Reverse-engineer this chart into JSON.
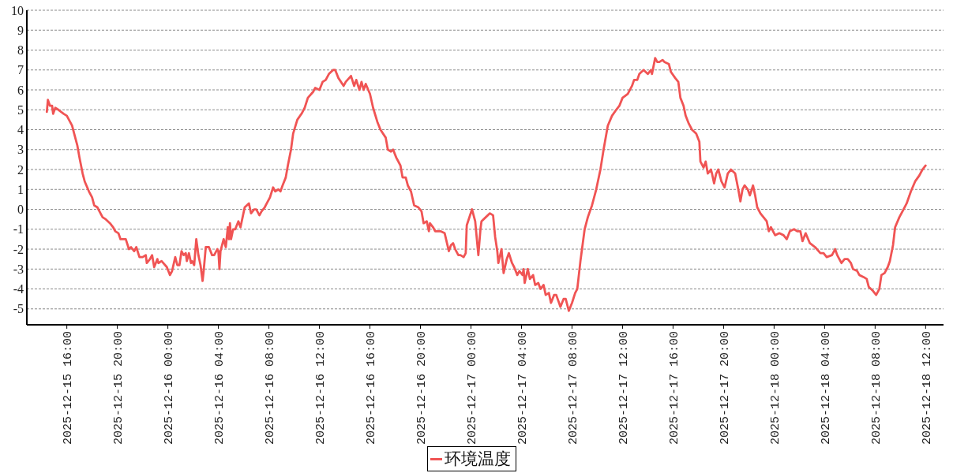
{
  "chart_data": {
    "type": "line",
    "x": [
      "2025-12-15T14:25",
      "2025-12-15T14:30",
      "2025-12-15T14:40",
      "2025-12-15T14:50",
      "2025-12-15T14:55",
      "2025-12-15T15:05",
      "2025-12-15T15:20",
      "2025-12-15T15:45",
      "2025-12-15T16:00",
      "2025-12-15T16:10",
      "2025-12-15T16:25",
      "2025-12-15T16:35",
      "2025-12-15T16:50",
      "2025-12-15T17:00",
      "2025-12-15T17:15",
      "2025-12-15T17:25",
      "2025-12-15T17:45",
      "2025-12-15T18:00",
      "2025-12-15T18:10",
      "2025-12-15T18:25",
      "2025-12-15T18:35",
      "2025-12-15T18:50",
      "2025-12-15T19:05",
      "2025-12-15T19:25",
      "2025-12-15T19:40",
      "2025-12-15T19:50",
      "2025-12-15T20:05",
      "2025-12-15T20:15",
      "2025-12-15T20:40",
      "2025-12-15T20:55",
      "2025-12-15T21:05",
      "2025-12-15T21:20",
      "2025-12-15T21:30",
      "2025-12-15T21:45",
      "2025-12-15T22:00",
      "2025-12-15T22:15",
      "2025-12-15T22:20",
      "2025-12-15T22:35",
      "2025-12-15T22:45",
      "2025-12-15T22:55",
      "2025-12-15T23:10",
      "2025-12-15T23:15",
      "2025-12-15T23:30",
      "2025-12-15T23:55",
      "2025-12-16T00:10",
      "2025-12-16T00:20",
      "2025-12-16T00:35",
      "2025-12-16T00:45",
      "2025-12-16T00:55",
      "2025-12-16T01:05",
      "2025-12-16T01:15",
      "2025-12-16T01:25",
      "2025-12-16T01:30",
      "2025-12-16T01:40",
      "2025-12-16T01:50",
      "2025-12-16T01:55",
      "2025-12-16T02:05",
      "2025-12-16T02:15",
      "2025-12-16T02:25",
      "2025-12-16T02:35",
      "2025-12-16T02:45",
      "2025-12-16T02:50",
      "2025-12-16T03:00",
      "2025-12-16T03:15",
      "2025-12-16T03:30",
      "2025-12-16T03:40",
      "2025-12-16T03:55",
      "2025-12-16T04:00",
      "2025-12-16T04:05",
      "2025-12-16T04:10",
      "2025-12-16T04:25",
      "2025-12-16T04:35",
      "2025-12-16T04:45",
      "2025-12-16T04:50",
      "2025-12-16T04:55",
      "2025-12-16T05:00",
      "2025-12-16T05:10",
      "2025-12-16T05:20",
      "2025-12-16T05:35",
      "2025-12-16T05:45",
      "2025-12-16T05:55",
      "2025-12-16T06:05",
      "2025-12-16T06:25",
      "2025-12-16T06:35",
      "2025-12-16T06:50",
      "2025-12-16T07:00",
      "2025-12-16T07:15",
      "2025-12-16T07:25",
      "2025-12-16T07:40",
      "2025-12-16T07:50",
      "2025-12-16T08:05",
      "2025-12-16T08:20",
      "2025-12-16T08:30",
      "2025-12-16T08:45",
      "2025-12-16T08:55",
      "2025-12-16T09:05",
      "2025-12-16T09:20",
      "2025-12-16T09:30",
      "2025-12-16T09:45",
      "2025-12-16T09:55",
      "2025-12-16T10:15",
      "2025-12-16T10:35",
      "2025-12-16T10:50",
      "2025-12-16T11:05",
      "2025-12-16T11:30",
      "2025-12-16T11:40",
      "2025-12-16T12:00",
      "2025-12-16T12:15",
      "2025-12-16T12:30",
      "2025-12-16T12:45",
      "2025-12-16T13:05",
      "2025-12-16T13:15",
      "2025-12-16T13:30",
      "2025-12-16T13:55",
      "2025-12-16T14:05",
      "2025-12-16T14:30",
      "2025-12-16T14:45",
      "2025-12-16T14:55",
      "2025-12-16T15:10",
      "2025-12-16T15:20",
      "2025-12-16T15:30",
      "2025-12-16T15:40",
      "2025-12-16T16:00",
      "2025-12-16T16:15",
      "2025-12-16T16:35",
      "2025-12-16T16:50",
      "2025-12-16T17:15",
      "2025-12-16T17:25",
      "2025-12-16T17:40",
      "2025-12-16T17:50",
      "2025-12-16T18:05",
      "2025-12-16T18:25",
      "2025-12-16T18:35",
      "2025-12-16T18:50",
      "2025-12-16T19:00",
      "2025-12-16T19:15",
      "2025-12-16T19:30",
      "2025-12-16T19:50",
      "2025-12-16T20:05",
      "2025-12-16T20:15",
      "2025-12-16T20:30",
      "2025-12-16T20:40",
      "2025-12-16T20:45",
      "2025-12-16T21:00",
      "2025-12-16T21:10",
      "2025-12-16T21:35",
      "2025-12-16T21:55",
      "2025-12-16T22:15",
      "2025-12-16T22:25",
      "2025-12-16T22:35",
      "2025-12-16T22:45",
      "2025-12-16T23:00",
      "2025-12-16T23:10",
      "2025-12-16T23:25",
      "2025-12-16T23:35",
      "2025-12-16T23:40",
      "2025-12-17T00:05",
      "2025-12-17T00:20",
      "2025-12-17T00:35",
      "2025-12-17T00:45",
      "2025-12-17T00:50",
      "2025-12-17T01:10",
      "2025-12-17T01:30",
      "2025-12-17T01:45",
      "2025-12-17T01:55",
      "2025-12-17T02:05",
      "2025-12-17T02:10",
      "2025-12-17T02:25",
      "2025-12-17T02:35",
      "2025-12-17T02:50",
      "2025-12-17T03:00",
      "2025-12-17T03:15",
      "2025-12-17T03:25",
      "2025-12-17T03:40",
      "2025-12-17T03:50",
      "2025-12-17T04:05",
      "2025-12-17T04:10",
      "2025-12-17T04:15",
      "2025-12-17T04:30",
      "2025-12-17T04:40",
      "2025-12-17T04:55",
      "2025-12-17T05:05",
      "2025-12-17T05:20",
      "2025-12-17T05:30",
      "2025-12-17T05:45",
      "2025-12-17T05:55",
      "2025-12-17T06:10",
      "2025-12-17T06:20",
      "2025-12-17T06:35",
      "2025-12-17T06:45",
      "2025-12-17T07:05",
      "2025-12-17T07:20",
      "2025-12-17T07:30",
      "2025-12-17T07:45",
      "2025-12-17T08:00",
      "2025-12-17T08:15",
      "2025-12-17T08:25",
      "2025-12-17T08:40",
      "2025-12-17T09:00",
      "2025-12-17T09:15",
      "2025-12-17T09:35",
      "2025-12-17T09:55",
      "2025-12-17T10:15",
      "2025-12-17T10:30",
      "2025-12-17T10:50",
      "2025-12-17T11:10",
      "2025-12-17T11:30",
      "2025-12-17T11:45",
      "2025-12-17T12:00",
      "2025-12-17T12:25",
      "2025-12-17T12:45",
      "2025-12-17T12:55",
      "2025-12-17T13:10",
      "2025-12-17T13:20",
      "2025-12-17T13:40",
      "2025-12-17T14:00",
      "2025-12-17T14:15",
      "2025-12-17T14:20",
      "2025-12-17T14:35",
      "2025-12-17T14:45",
      "2025-12-17T14:55",
      "2025-12-17T15:10",
      "2025-12-17T15:20",
      "2025-12-17T15:40",
      "2025-12-17T15:50",
      "2025-12-17T16:10",
      "2025-12-17T16:25",
      "2025-12-17T16:35",
      "2025-12-17T16:50",
      "2025-12-17T17:00",
      "2025-12-17T17:15",
      "2025-12-17T17:30",
      "2025-12-17T17:50",
      "2025-12-17T18:05",
      "2025-12-17T18:10",
      "2025-12-17T18:25",
      "2025-12-17T18:35",
      "2025-12-17T18:45",
      "2025-12-17T19:00",
      "2025-12-17T19:05",
      "2025-12-17T19:15",
      "2025-12-17T19:25",
      "2025-12-17T19:35",
      "2025-12-17T19:50",
      "2025-12-17T20:05",
      "2025-12-17T20:20",
      "2025-12-17T20:35",
      "2025-12-17T20:55",
      "2025-12-17T21:10",
      "2025-12-17T21:20",
      "2025-12-17T21:30",
      "2025-12-17T21:40",
      "2025-12-17T21:55",
      "2025-12-17T22:05",
      "2025-12-17T22:20",
      "2025-12-17T22:30",
      "2025-12-17T22:40",
      "2025-12-17T22:55",
      "2025-12-17T23:10",
      "2025-12-17T23:25",
      "2025-12-17T23:35",
      "2025-12-17T23:45",
      "2025-12-18T00:05",
      "2025-12-18T00:25",
      "2025-12-18T00:45",
      "2025-12-18T01:00",
      "2025-12-18T01:15",
      "2025-12-18T01:35",
      "2025-12-18T01:50",
      "2025-12-18T02:05",
      "2025-12-18T02:15",
      "2025-12-18T02:30",
      "2025-12-18T02:50",
      "2025-12-18T03:15",
      "2025-12-18T03:40",
      "2025-12-18T03:55",
      "2025-12-18T04:10",
      "2025-12-18T04:35",
      "2025-12-18T04:50",
      "2025-12-18T05:00",
      "2025-12-18T05:20",
      "2025-12-18T05:35",
      "2025-12-18T05:50",
      "2025-12-18T06:05",
      "2025-12-18T06:15",
      "2025-12-18T06:35",
      "2025-12-18T06:45",
      "2025-12-18T07:05",
      "2025-12-18T07:20",
      "2025-12-18T07:30",
      "2025-12-18T07:50",
      "2025-12-18T08:05",
      "2025-12-18T08:20",
      "2025-12-18T08:30",
      "2025-12-18T08:45",
      "2025-12-18T09:00",
      "2025-12-18T09:10",
      "2025-12-18T09:25",
      "2025-12-18T09:35",
      "2025-12-18T09:55",
      "2025-12-18T10:15",
      "2025-12-18T10:30",
      "2025-12-18T10:50",
      "2025-12-18T11:10",
      "2025-12-18T11:30",
      "2025-12-18T11:45",
      "2025-12-18T12:00"
    ],
    "series": [
      {
        "name": "环境温度",
        "color": "#f05454",
        "values": [
          4.9,
          5.5,
          5.2,
          5.2,
          4.8,
          5.1,
          5.0,
          4.8,
          4.7,
          4.5,
          4.2,
          3.8,
          3.2,
          2.6,
          1.8,
          1.4,
          0.9,
          0.6,
          0.2,
          0.1,
          -0.1,
          -0.4,
          -0.5,
          -0.7,
          -0.9,
          -1.1,
          -1.2,
          -1.5,
          -1.5,
          -2.0,
          -1.9,
          -2.1,
          -1.9,
          -2.4,
          -2.4,
          -2.3,
          -2.7,
          -2.5,
          -2.3,
          -2.9,
          -2.5,
          -2.7,
          -2.6,
          -2.9,
          -3.3,
          -3.1,
          -2.4,
          -2.8,
          -2.8,
          -2.1,
          -2.3,
          -2.2,
          -2.6,
          -2.2,
          -2.7,
          -2.6,
          -2.8,
          -1.5,
          -2.3,
          -2.8,
          -3.6,
          -3.1,
          -1.9,
          -1.9,
          -2.3,
          -2.3,
          -2.0,
          -2.1,
          -3.0,
          -2.1,
          -1.5,
          -1.9,
          -0.9,
          -1.5,
          -0.7,
          -1.5,
          -1.0,
          -1.0,
          -0.6,
          -0.9,
          -0.4,
          0.1,
          0.3,
          -0.2,
          0.0,
          0.0,
          -0.3,
          -0.1,
          0.1,
          0.3,
          0.6,
          1.1,
          0.9,
          1.0,
          0.9,
          1.2,
          1.6,
          2.2,
          3.0,
          3.8,
          4.5,
          4.8,
          5.1,
          5.6,
          5.9,
          6.1,
          6.0,
          6.4,
          6.5,
          6.8,
          7.0,
          7.0,
          6.6,
          6.2,
          6.4,
          6.7,
          6.2,
          6.5,
          6.0,
          6.4,
          6.0,
          6.3,
          5.8,
          5.1,
          4.4,
          4.0,
          3.6,
          3.0,
          2.9,
          3.0,
          2.6,
          2.2,
          1.6,
          1.6,
          1.2,
          0.9,
          0.2,
          0.1,
          -0.1,
          -0.7,
          -0.6,
          -1.1,
          -0.7,
          -0.9,
          -1.1,
          -1.1,
          -1.2,
          -2.1,
          -1.8,
          -1.7,
          -2.0,
          -2.3,
          -2.3,
          -2.4,
          -2.2,
          -0.8,
          0.0,
          -0.6,
          -2.3,
          -1.0,
          -0.6,
          -0.4,
          -0.2,
          -0.3,
          -1.4,
          -2.1,
          -2.7,
          -2.0,
          -3.2,
          -2.5,
          -2.2,
          -2.7,
          -2.9,
          -3.3,
          -3.1,
          -3.3,
          -3.0,
          -3.7,
          -3.0,
          -3.5,
          -3.3,
          -3.8,
          -3.7,
          -4.0,
          -3.8,
          -4.3,
          -4.2,
          -4.7,
          -4.3,
          -4.3,
          -4.9,
          -4.5,
          -4.5,
          -5.1,
          -4.7,
          -4.2,
          -4.0,
          -2.6,
          -1.0,
          -0.4,
          0.2,
          1.0,
          2.0,
          3.0,
          4.2,
          4.7,
          5.0,
          5.2,
          5.6,
          5.8,
          6.2,
          6.5,
          6.5,
          6.8,
          7.0,
          6.8,
          7.0,
          6.8,
          7.6,
          7.4,
          7.4,
          7.5,
          7.4,
          7.3,
          6.9,
          6.6,
          6.4,
          5.6,
          5.2,
          4.7,
          4.3,
          4.0,
          3.8,
          3.4,
          2.4,
          2.1,
          2.4,
          1.8,
          2.0,
          1.8,
          1.3,
          1.8,
          2.0,
          1.4,
          1.1,
          1.8,
          2.0,
          1.8,
          1.0,
          0.4,
          1.0,
          1.2,
          1.0,
          0.7,
          1.2,
          0.7,
          0.1,
          -0.2,
          -0.4,
          -0.6,
          -1.1,
          -0.9,
          -1.3,
          -1.2,
          -1.3,
          -1.5,
          -1.1,
          -1.0,
          -1.1,
          -1.1,
          -1.6,
          -1.2,
          -1.7,
          -1.9,
          -2.2,
          -2.2,
          -2.4,
          -2.3,
          -2.0,
          -2.3,
          -2.7,
          -2.5,
          -2.5,
          -2.7,
          -3.0,
          -3.1,
          -3.3,
          -3.4,
          -3.5,
          -3.9,
          -4.1,
          -4.3,
          -4.0,
          -3.3,
          -3.2,
          -2.9,
          -2.6,
          -1.8,
          -0.9,
          -0.4,
          0.0,
          0.3,
          0.9,
          1.4,
          1.7,
          2.0,
          2.2
        ]
      }
    ],
    "xlim": [
      "2025-12-15T12:50",
      "2025-12-18T13:25"
    ],
    "xticks": [
      {
        "value": "2025-12-15T16:00",
        "label": "2025-12-15 16:00"
      },
      {
        "value": "2025-12-15T20:00",
        "label": "2025-12-15 20:00"
      },
      {
        "value": "2025-12-16T00:00",
        "label": "2025-12-16 00:00"
      },
      {
        "value": "2025-12-16T04:00",
        "label": "2025-12-16 04:00"
      },
      {
        "value": "2025-12-16T08:00",
        "label": "2025-12-16 08:00"
      },
      {
        "value": "2025-12-16T12:00",
        "label": "2025-12-16 12:00"
      },
      {
        "value": "2025-12-16T16:00",
        "label": "2025-12-16 16:00"
      },
      {
        "value": "2025-12-16T20:00",
        "label": "2025-12-16 20:00"
      },
      {
        "value": "2025-12-17T00:00",
        "label": "2025-12-17 00:00"
      },
      {
        "value": "2025-12-17T04:00",
        "label": "2025-12-17 04:00"
      },
      {
        "value": "2025-12-17T08:00",
        "label": "2025-12-17 08:00"
      },
      {
        "value": "2025-12-17T12:00",
        "label": "2025-12-17 12:00"
      },
      {
        "value": "2025-12-17T16:00",
        "label": "2025-12-17 16:00"
      },
      {
        "value": "2025-12-17T20:00",
        "label": "2025-12-17 20:00"
      },
      {
        "value": "2025-12-18T00:00",
        "label": "2025-12-18 00:00"
      },
      {
        "value": "2025-12-18T04:00",
        "label": "2025-12-18 04:00"
      },
      {
        "value": "2025-12-18T08:00",
        "label": "2025-12-18 08:00"
      },
      {
        "value": "2025-12-18T12:00",
        "label": "2025-12-18 12:00"
      }
    ],
    "ylim": [
      -5.8,
      10
    ],
    "yticks": [
      -5,
      -4,
      -3,
      -2,
      -1,
      0,
      1,
      2,
      3,
      4,
      5,
      6,
      7,
      8,
      9,
      10
    ],
    "grid": "y",
    "legend": "bottom",
    "marker": "none",
    "line_style": "solid"
  }
}
